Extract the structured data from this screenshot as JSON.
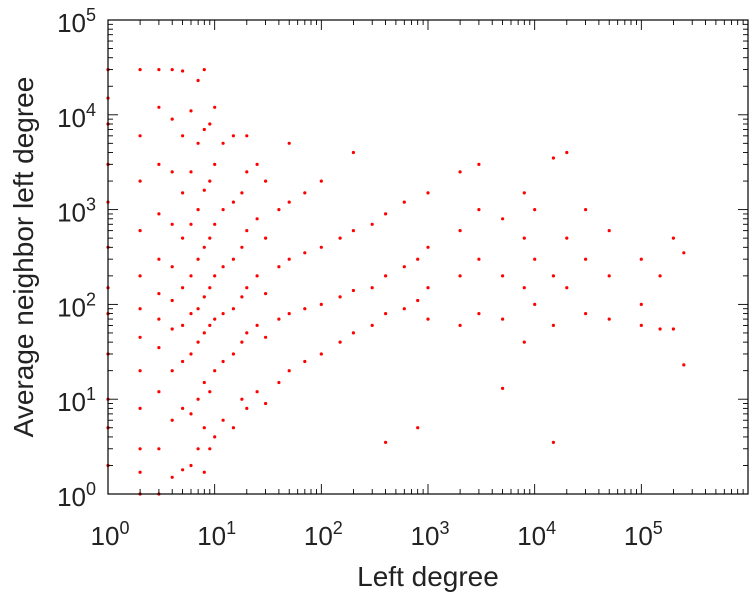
{
  "chart_data": {
    "type": "scatter",
    "title": "",
    "xlabel": "Left degree",
    "ylabel": "Average neighbor left degree",
    "x_scale": "log",
    "y_scale": "log",
    "xlim": [
      1,
      1000000
    ],
    "ylim": [
      1,
      100000
    ],
    "x_ticks": [
      {
        "base": "10",
        "exp": "0",
        "value": 1
      },
      {
        "base": "10",
        "exp": "1",
        "value": 10
      },
      {
        "base": "10",
        "exp": "2",
        "value": 100
      },
      {
        "base": "10",
        "exp": "3",
        "value": 1000
      },
      {
        "base": "10",
        "exp": "4",
        "value": 10000
      },
      {
        "base": "10",
        "exp": "5",
        "value": 100000
      }
    ],
    "y_ticks": [
      {
        "base": "10",
        "exp": "0",
        "value": 1
      },
      {
        "base": "10",
        "exp": "1",
        "value": 10
      },
      {
        "base": "10",
        "exp": "2",
        "value": 100
      },
      {
        "base": "10",
        "exp": "3",
        "value": 1000
      },
      {
        "base": "10",
        "exp": "4",
        "value": 10000
      },
      {
        "base": "10",
        "exp": "5",
        "value": 100000
      }
    ],
    "grid": false,
    "marker_color": "#ff0000",
    "series": [
      {
        "values": [
          [
            1,
            2
          ],
          [
            1,
            5
          ],
          [
            1,
            10
          ],
          [
            1,
            30
          ],
          [
            1,
            80
          ],
          [
            1,
            150
          ],
          [
            1,
            400
          ],
          [
            1,
            1200
          ],
          [
            1,
            3000
          ],
          [
            1,
            8000
          ],
          [
            1,
            15000
          ],
          [
            1,
            30000
          ],
          [
            2,
            1
          ],
          [
            2,
            1.7
          ],
          [
            2,
            3
          ],
          [
            2,
            8
          ],
          [
            2,
            20
          ],
          [
            2,
            45
          ],
          [
            2,
            90
          ],
          [
            2,
            200
          ],
          [
            2,
            600
          ],
          [
            2,
            2000
          ],
          [
            2,
            6000
          ],
          [
            2,
            30000
          ],
          [
            3,
            1
          ],
          [
            3,
            3
          ],
          [
            3,
            12
          ],
          [
            3,
            35
          ],
          [
            3,
            70
          ],
          [
            3,
            130
          ],
          [
            3,
            300
          ],
          [
            3,
            900
          ],
          [
            3,
            3000
          ],
          [
            3,
            12000
          ],
          [
            3,
            30000
          ],
          [
            4,
            1.5
          ],
          [
            4,
            6
          ],
          [
            4,
            20
          ],
          [
            4,
            55
          ],
          [
            4,
            110
          ],
          [
            4,
            250
          ],
          [
            4,
            700
          ],
          [
            4,
            2500
          ],
          [
            4,
            9000
          ],
          [
            4,
            30000
          ],
          [
            5,
            1.8
          ],
          [
            5,
            8
          ],
          [
            5,
            25
          ],
          [
            5,
            60
          ],
          [
            5,
            150
          ],
          [
            5,
            500
          ],
          [
            5,
            1500
          ],
          [
            5,
            6000
          ],
          [
            5,
            29000
          ],
          [
            6,
            2
          ],
          [
            6,
            7
          ],
          [
            6,
            30
          ],
          [
            6,
            80
          ],
          [
            6,
            200
          ],
          [
            6,
            700
          ],
          [
            6,
            2500
          ],
          [
            6,
            11000
          ],
          [
            7,
            3
          ],
          [
            7,
            10
          ],
          [
            7,
            40
          ],
          [
            7,
            90
          ],
          [
            7,
            300
          ],
          [
            7,
            1000
          ],
          [
            7,
            5000
          ],
          [
            7,
            23000
          ],
          [
            8,
            1.7
          ],
          [
            8,
            5
          ],
          [
            8,
            15
          ],
          [
            8,
            50
          ],
          [
            8,
            120
          ],
          [
            8,
            400
          ],
          [
            8,
            1600
          ],
          [
            8,
            7000
          ],
          [
            8,
            30000
          ],
          [
            9,
            3
          ],
          [
            9,
            12
          ],
          [
            9,
            60
          ],
          [
            9,
            150
          ],
          [
            9,
            500
          ],
          [
            9,
            2000
          ],
          [
            9,
            8000
          ],
          [
            10,
            4
          ],
          [
            10,
            20
          ],
          [
            10,
            70
          ],
          [
            10,
            200
          ],
          [
            10,
            700
          ],
          [
            10,
            3000
          ],
          [
            10,
            12000
          ],
          [
            12,
            6
          ],
          [
            12,
            25
          ],
          [
            12,
            80
          ],
          [
            12,
            250
          ],
          [
            12,
            1000
          ],
          [
            12,
            5000
          ],
          [
            15,
            5
          ],
          [
            15,
            30
          ],
          [
            15,
            90
          ],
          [
            15,
            300
          ],
          [
            15,
            1200
          ],
          [
            15,
            6000
          ],
          [
            18,
            10
          ],
          [
            18,
            40
          ],
          [
            18,
            120
          ],
          [
            18,
            400
          ],
          [
            18,
            1500
          ],
          [
            20,
            8
          ],
          [
            20,
            50
          ],
          [
            20,
            150
          ],
          [
            20,
            600
          ],
          [
            20,
            2500
          ],
          [
            20,
            6000
          ],
          [
            25,
            12
          ],
          [
            25,
            60
          ],
          [
            25,
            200
          ],
          [
            25,
            800
          ],
          [
            25,
            3000
          ],
          [
            30,
            9
          ],
          [
            30,
            45
          ],
          [
            30,
            130
          ],
          [
            30,
            500
          ],
          [
            30,
            2000
          ],
          [
            40,
            15
          ],
          [
            40,
            70
          ],
          [
            40,
            250
          ],
          [
            40,
            1000
          ],
          [
            50,
            20
          ],
          [
            50,
            80
          ],
          [
            50,
            300
          ],
          [
            50,
            1200
          ],
          [
            50,
            5000
          ],
          [
            70,
            25
          ],
          [
            70,
            90
          ],
          [
            70,
            350
          ],
          [
            70,
            1500
          ],
          [
            100,
            30
          ],
          [
            100,
            100
          ],
          [
            100,
            400
          ],
          [
            100,
            2000
          ],
          [
            150,
            40
          ],
          [
            150,
            120
          ],
          [
            150,
            500
          ],
          [
            200,
            50
          ],
          [
            200,
            140
          ],
          [
            200,
            600
          ],
          [
            200,
            4000
          ],
          [
            300,
            60
          ],
          [
            300,
            150
          ],
          [
            300,
            700
          ],
          [
            400,
            3.5
          ],
          [
            400,
            80
          ],
          [
            400,
            200
          ],
          [
            400,
            900
          ],
          [
            600,
            90
          ],
          [
            600,
            250
          ],
          [
            600,
            1200
          ],
          [
            800,
            5
          ],
          [
            800,
            110
          ],
          [
            800,
            300
          ],
          [
            1000,
            70
          ],
          [
            1000,
            150
          ],
          [
            1000,
            400
          ],
          [
            1000,
            1500
          ],
          [
            2000,
            60
          ],
          [
            2000,
            200
          ],
          [
            2000,
            600
          ],
          [
            2000,
            2500
          ],
          [
            3000,
            80
          ],
          [
            3000,
            300
          ],
          [
            3000,
            1000
          ],
          [
            3000,
            3000
          ],
          [
            5000,
            13
          ],
          [
            5000,
            70
          ],
          [
            5000,
            200
          ],
          [
            5000,
            800
          ],
          [
            8000,
            40
          ],
          [
            8000,
            150
          ],
          [
            8000,
            500
          ],
          [
            8000,
            1500
          ],
          [
            10000,
            100
          ],
          [
            10000,
            300
          ],
          [
            10000,
            1000
          ],
          [
            15000,
            3.5
          ],
          [
            15000,
            60
          ],
          [
            15000,
            200
          ],
          [
            15000,
            3500
          ],
          [
            20000,
            150
          ],
          [
            20000,
            500
          ],
          [
            20000,
            4000
          ],
          [
            30000,
            80
          ],
          [
            30000,
            300
          ],
          [
            30000,
            1000
          ],
          [
            50000,
            70
          ],
          [
            50000,
            200
          ],
          [
            50000,
            600
          ],
          [
            100000,
            60
          ],
          [
            100000,
            100
          ],
          [
            100000,
            300
          ],
          [
            150000,
            55
          ],
          [
            150000,
            200
          ],
          [
            200000,
            55
          ],
          [
            200000,
            500
          ],
          [
            250000,
            23
          ],
          [
            250000,
            350
          ]
        ]
      }
    ]
  }
}
